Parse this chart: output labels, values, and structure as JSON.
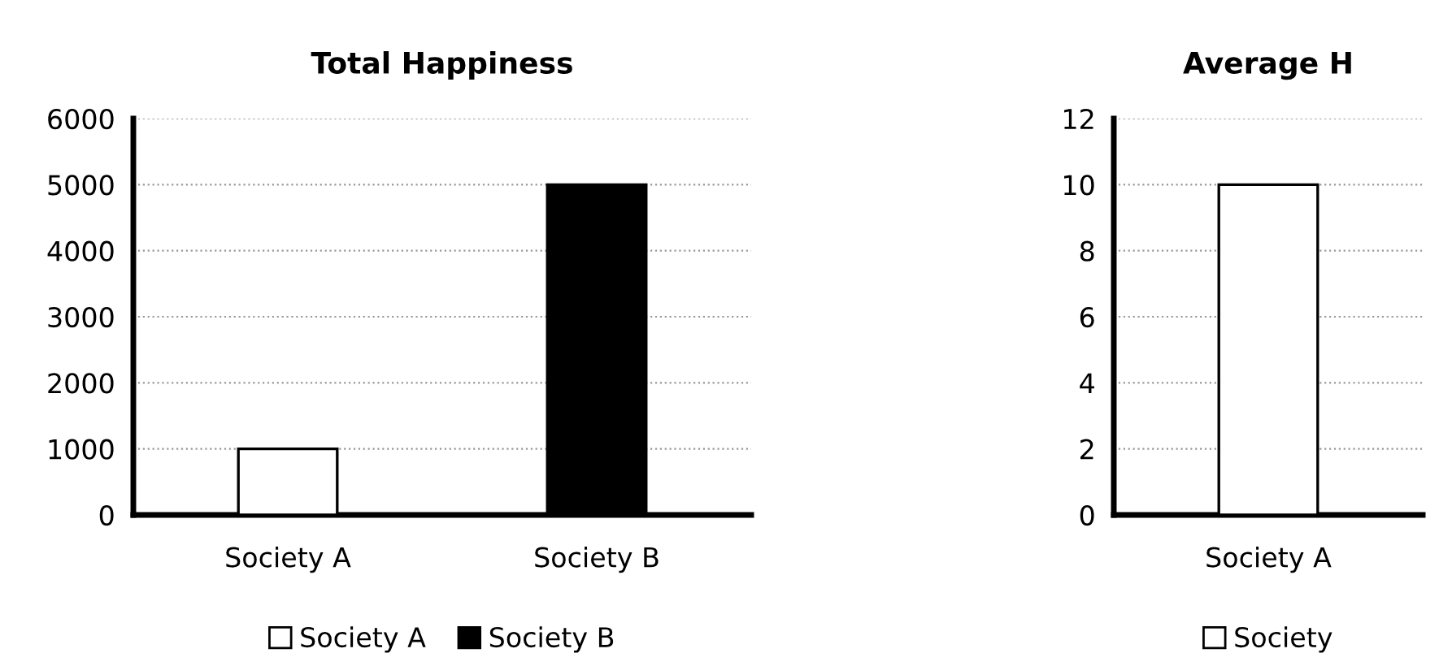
{
  "chart_data": [
    {
      "type": "bar",
      "title": "Total Happiness",
      "categories": [
        "Society A",
        "Society B"
      ],
      "series": [
        {
          "name": "Society A",
          "color": "#ffffff",
          "values": [
            1000,
            null
          ]
        },
        {
          "name": "Society B",
          "color": "#000000",
          "values": [
            null,
            5000
          ]
        }
      ],
      "ylim": [
        0,
        6000
      ],
      "yticks": [
        0,
        1000,
        2000,
        3000,
        4000,
        5000,
        6000
      ],
      "grid": "y",
      "legend": "bottom"
    },
    {
      "type": "bar",
      "title": "Average H",
      "categories": [
        "Society A"
      ],
      "series": [
        {
          "name": "Society",
          "color": "#ffffff",
          "values": [
            10
          ]
        }
      ],
      "ylim": [
        0,
        12
      ],
      "yticks": [
        0,
        2,
        4,
        6,
        8,
        10,
        12
      ],
      "grid": "y",
      "legend": "bottom"
    }
  ]
}
